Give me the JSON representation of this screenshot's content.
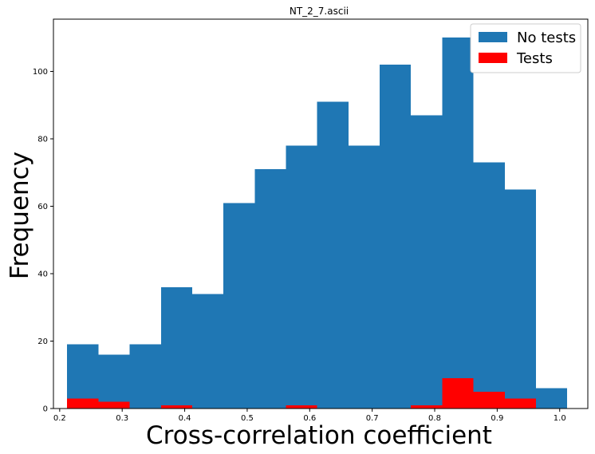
{
  "chart_data": {
    "type": "bar",
    "title": "NT_2_7.ascii",
    "xlabel": "Cross-correlation coefficient",
    "ylabel": "Frequency",
    "xlim": [
      0.19,
      1.045
    ],
    "ylim": [
      0,
      115.5
    ],
    "xticks": [
      "0.2",
      "0.3",
      "0.4",
      "0.5",
      "0.6",
      "0.7",
      "0.8",
      "0.9",
      "1.0"
    ],
    "yticks": [
      "0",
      "20",
      "40",
      "60",
      "80",
      "100"
    ],
    "grid": false,
    "legend_position": "top-right",
    "series": [
      {
        "name": "No tests",
        "color": "#1f77b4",
        "bins": [
          {
            "x0": 0.212,
            "x1": 0.262,
            "count": 19
          },
          {
            "x0": 0.262,
            "x1": 0.312,
            "count": 16
          },
          {
            "x0": 0.312,
            "x1": 0.362,
            "count": 19
          },
          {
            "x0": 0.362,
            "x1": 0.412,
            "count": 36
          },
          {
            "x0": 0.412,
            "x1": 0.462,
            "count": 34
          },
          {
            "x0": 0.462,
            "x1": 0.512,
            "count": 61
          },
          {
            "x0": 0.512,
            "x1": 0.562,
            "count": 71
          },
          {
            "x0": 0.562,
            "x1": 0.612,
            "count": 78
          },
          {
            "x0": 0.612,
            "x1": 0.662,
            "count": 91
          },
          {
            "x0": 0.662,
            "x1": 0.712,
            "count": 78
          },
          {
            "x0": 0.712,
            "x1": 0.762,
            "count": 102
          },
          {
            "x0": 0.762,
            "x1": 0.812,
            "count": 87
          },
          {
            "x0": 0.812,
            "x1": 0.862,
            "count": 110
          },
          {
            "x0": 0.862,
            "x1": 0.912,
            "count": 73
          },
          {
            "x0": 0.912,
            "x1": 0.962,
            "count": 65
          },
          {
            "x0": 0.962,
            "x1": 1.012,
            "count": 6
          }
        ]
      },
      {
        "name": "Tests",
        "color": "#ff0000",
        "bins": [
          {
            "x0": 0.212,
            "x1": 0.262,
            "count": 3
          },
          {
            "x0": 0.262,
            "x1": 0.312,
            "count": 2
          },
          {
            "x0": 0.362,
            "x1": 0.412,
            "count": 1
          },
          {
            "x0": 0.562,
            "x1": 0.612,
            "count": 1
          },
          {
            "x0": 0.762,
            "x1": 0.812,
            "count": 1
          },
          {
            "x0": 0.812,
            "x1": 0.862,
            "count": 9
          },
          {
            "x0": 0.862,
            "x1": 0.912,
            "count": 5
          },
          {
            "x0": 0.912,
            "x1": 0.962,
            "count": 3
          }
        ]
      }
    ]
  }
}
